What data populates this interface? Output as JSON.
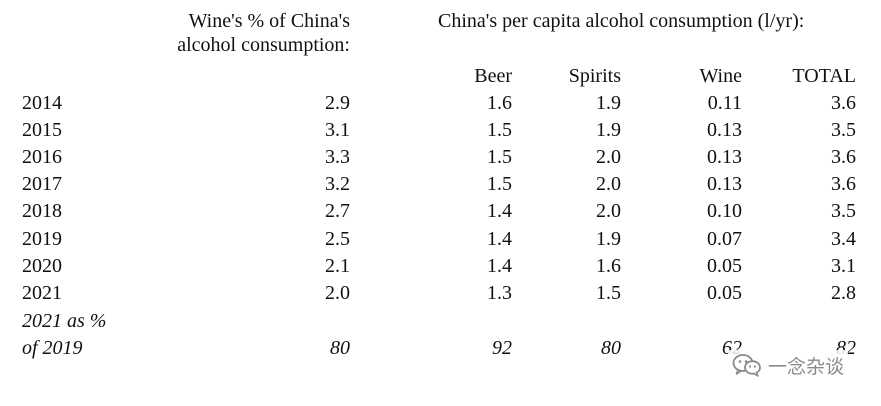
{
  "headers": {
    "wine_share_line1": "Wine's % of China's",
    "wine_share_line2": "alcohol consumption:",
    "per_capita_title": "China's per capita alcohol consumption (l/yr):",
    "col_beer": "Beer",
    "col_spirits": "Spirits",
    "col_wine": "Wine",
    "col_total": "TOTAL"
  },
  "rows": [
    {
      "year": "2014",
      "wine_share": "2.9",
      "beer": "1.6",
      "spirits": "1.9",
      "wine": "0.11",
      "total": "3.6"
    },
    {
      "year": "2015",
      "wine_share": "3.1",
      "beer": "1.5",
      "spirits": "1.9",
      "wine": "0.13",
      "total": "3.5"
    },
    {
      "year": "2016",
      "wine_share": "3.3",
      "beer": "1.5",
      "spirits": "2.0",
      "wine": "0.13",
      "total": "3.6"
    },
    {
      "year": "2017",
      "wine_share": "3.2",
      "beer": "1.5",
      "spirits": "2.0",
      "wine": "0.13",
      "total": "3.6"
    },
    {
      "year": "2018",
      "wine_share": "2.7",
      "beer": "1.4",
      "spirits": "2.0",
      "wine": "0.10",
      "total": "3.5"
    },
    {
      "year": "2019",
      "wine_share": "2.5",
      "beer": "1.4",
      "spirits": "1.9",
      "wine": "0.07",
      "total": "3.4"
    },
    {
      "year": "2020",
      "wine_share": "2.1",
      "beer": "1.4",
      "spirits": "1.6",
      "wine": "0.05",
      "total": "3.1"
    },
    {
      "year": "2021",
      "wine_share": "2.0",
      "beer": "1.3",
      "spirits": "1.5",
      "wine": "0.05",
      "total": "2.8"
    }
  ],
  "summary": {
    "label_line1": "2021 as %",
    "label_line2": "of 2019",
    "wine_share": "80",
    "beer": "92",
    "spirits": "80",
    "wine": "62",
    "total": "82"
  },
  "watermark": {
    "text": "一念杂谈",
    "icon": "wechat-icon"
  }
}
